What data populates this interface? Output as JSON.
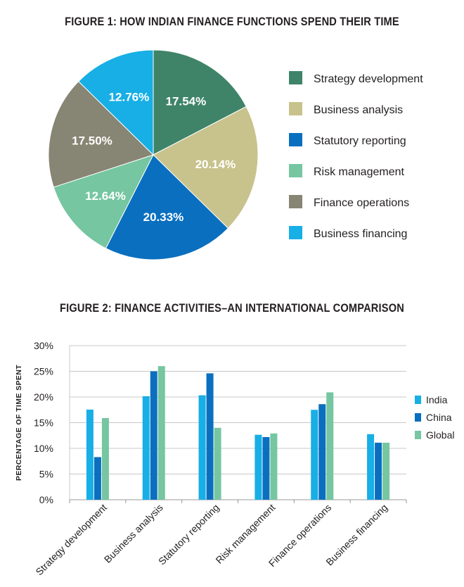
{
  "figure1": {
    "title": "FIGURE 1: HOW INDIAN FINANCE FUNCTIONS SPEND THEIR TIME"
  },
  "figure2": {
    "title": "FIGURE 2: FINANCE ACTIVITIES–AN INTERNATIONAL COMPARISON"
  },
  "colors": {
    "strategy_development": "#3f8468",
    "business_analysis": "#c8c28c",
    "statutory_reporting": "#0a6fbf",
    "risk_management": "#75c6a1",
    "finance_operations": "#878573",
    "business_financing": "#17afe6",
    "india": "#18aee6",
    "china": "#0a6fbf",
    "global": "#75c6a1"
  },
  "chart_data": [
    {
      "type": "pie",
      "title": "FIGURE 1: HOW INDIAN FINANCE FUNCTIONS SPEND THEIR TIME",
      "legend_position": "right",
      "slices": [
        {
          "label": "Strategy development",
          "value": 17.54,
          "value_label": "17.54%",
          "color": "#3f8468"
        },
        {
          "label": "Business analysis",
          "value": 20.14,
          "value_label": "20.14%",
          "color": "#c8c28c"
        },
        {
          "label": "Statutory reporting",
          "value": 20.33,
          "value_label": "20.33%",
          "color": "#0a6fbf"
        },
        {
          "label": "Risk management",
          "value": 12.64,
          "value_label": "12.64%",
          "color": "#75c6a1"
        },
        {
          "label": "Finance operations",
          "value": 17.5,
          "value_label": "17.50%",
          "color": "#878573"
        },
        {
          "label": "Business financing",
          "value": 12.76,
          "value_label": "12.76%",
          "color": "#17afe6"
        }
      ]
    },
    {
      "type": "bar",
      "title": "FIGURE 2: FINANCE ACTIVITIES–AN INTERNATIONAL COMPARISON",
      "ylabel": "PERCENTAGE OF TIME SPENT",
      "xlabel": "",
      "ylim": [
        0,
        30
      ],
      "yticks": [
        "0%",
        "5%",
        "10%",
        "15%",
        "20%",
        "25%",
        "30%"
      ],
      "grid": "horizontal",
      "legend_position": "right",
      "categories": [
        "Strategy development",
        "Business analysis",
        "Statutory reporting",
        "Risk management",
        "Finance operations",
        "Business financing"
      ],
      "series": [
        {
          "name": "India",
          "color": "#18aee6",
          "values": [
            17.54,
            20.14,
            20.33,
            12.64,
            17.5,
            12.76
          ]
        },
        {
          "name": "China",
          "color": "#0a6fbf",
          "values": [
            8.3,
            25.0,
            24.6,
            12.2,
            18.6,
            11.1
          ]
        },
        {
          "name": "Global",
          "color": "#75c6a1",
          "values": [
            15.9,
            26.0,
            14.0,
            12.9,
            20.9,
            11.1
          ]
        }
      ]
    }
  ]
}
